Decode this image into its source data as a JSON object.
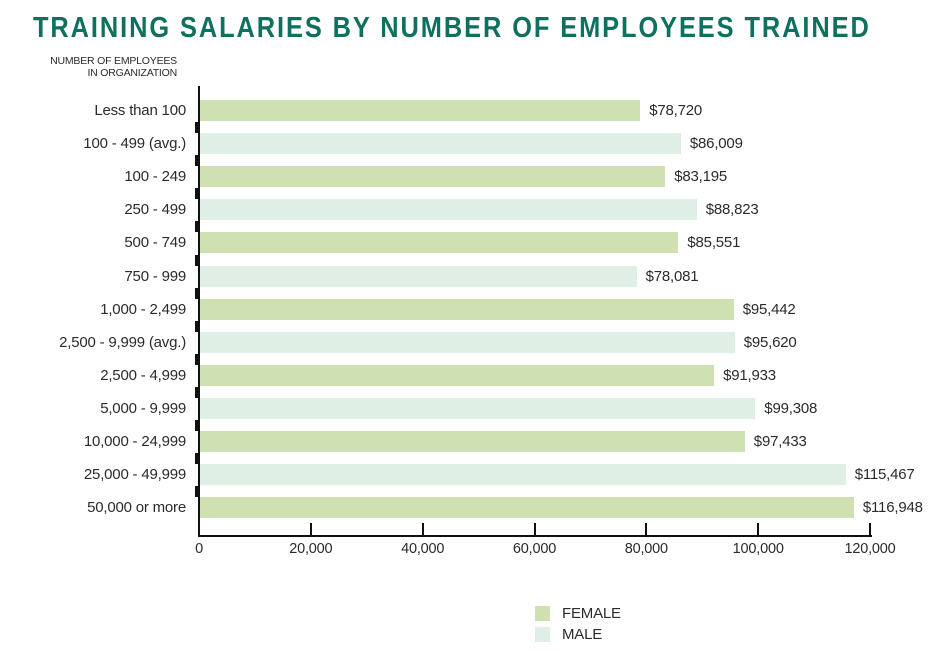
{
  "chart_data": {
    "type": "bar",
    "orientation": "horizontal",
    "title": "TRAINING SALARIES BY NUMBER OF EMPLOYEES TRAINED",
    "title_color": "#10705f",
    "y_axis_title_lines": [
      "NUMBER OF EMPLOYEES",
      "IN ORGANIZATION"
    ],
    "xlabel": "",
    "ylabel": "NUMBER OF EMPLOYEES IN ORGANIZATION",
    "xlim": [
      0,
      120000
    ],
    "grid": false,
    "legend_position": "bottom-center",
    "categories": [
      "Less than 100",
      "100 - 499 (avg.)",
      "100 - 249",
      "250 - 499",
      "500 - 749",
      "750 - 999",
      "1,000 - 2,499",
      "2,500 - 9,999 (avg.)",
      "2,500 - 4,999",
      "5,000 - 9,999",
      "10,000 - 24,999",
      "25,000 - 49,999",
      "50,000 or more"
    ],
    "values": [
      78720,
      86009,
      83195,
      88823,
      85551,
      78081,
      95442,
      95620,
      91933,
      99308,
      97433,
      115467,
      116948
    ],
    "rows": [
      {
        "category": "Less than 100",
        "value": 78720,
        "display": "$78,720",
        "group": "FEMALE"
      },
      {
        "category": "100 - 499 (avg.)",
        "value": 86009,
        "display": "$86,009",
        "group": "MALE"
      },
      {
        "category": "100 - 249",
        "value": 83195,
        "display": "$83,195",
        "group": "FEMALE"
      },
      {
        "category": "250 - 499",
        "value": 88823,
        "display": "$88,823",
        "group": "MALE"
      },
      {
        "category": "500 - 749",
        "value": 85551,
        "display": "$85,551",
        "group": "FEMALE"
      },
      {
        "category": "750 - 999",
        "value": 78081,
        "display": "$78,081",
        "group": "MALE"
      },
      {
        "category": "1,000 - 2,499",
        "value": 95442,
        "display": "$95,442",
        "group": "FEMALE"
      },
      {
        "category": "2,500 - 9,999 (avg.)",
        "value": 95620,
        "display": "$95,620",
        "group": "MALE"
      },
      {
        "category": "2,500 - 4,999",
        "value": 91933,
        "display": "$91,933",
        "group": "FEMALE"
      },
      {
        "category": "5,000 - 9,999",
        "value": 99308,
        "display": "$99,308",
        "group": "MALE"
      },
      {
        "category": "10,000 - 24,999",
        "value": 97433,
        "display": "$97,433",
        "group": "FEMALE"
      },
      {
        "category": "25,000 - 49,999",
        "value": 115467,
        "display": "$115,467",
        "group": "MALE"
      },
      {
        "category": "50,000 or more",
        "value": 116948,
        "display": "$116,948",
        "group": "FEMALE"
      }
    ],
    "x_ticks": [
      {
        "value": 0,
        "label": "0"
      },
      {
        "value": 20000,
        "label": "20,000"
      },
      {
        "value": 40000,
        "label": "40,000"
      },
      {
        "value": 60000,
        "label": "60,000"
      },
      {
        "value": 80000,
        "label": "80,000"
      },
      {
        "value": 100000,
        "label": "100,000"
      },
      {
        "value": 120000,
        "label": "120,000"
      }
    ],
    "legend": [
      {
        "label": "FEMALE",
        "color": "#cfe0b3"
      },
      {
        "label": "MALE",
        "color": "#dfefe5"
      }
    ],
    "colors": {
      "female_bar": "#cfe0b3",
      "male_bar": "#dfefe5",
      "axis": "#111111",
      "text": "#2b2b2b",
      "title": "#10705f"
    }
  }
}
